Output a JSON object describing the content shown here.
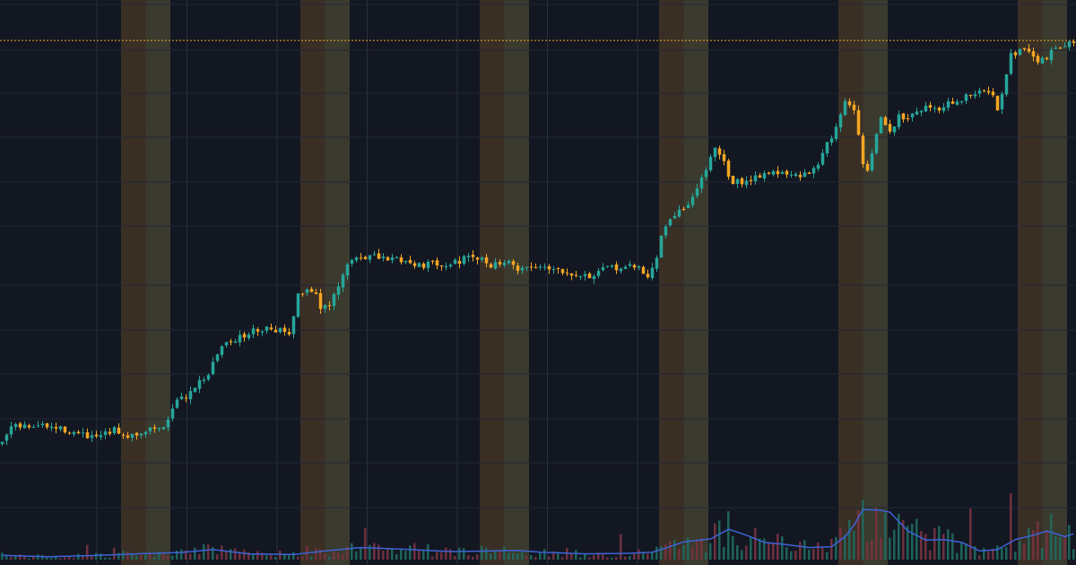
{
  "colors": {
    "background": "#131722",
    "grid": "#222735",
    "up": "#26a69a",
    "down": "#f5a623",
    "session_a": "#3a2f25",
    "session_b": "#3a3b2e",
    "price_line": "#f5a623",
    "volume_ma": "#3d63d6",
    "volume_up": "#1f6b5e",
    "volume_down": "#7a3340"
  },
  "chart_data": {
    "type": "candlestick",
    "title": "",
    "xlabel": "",
    "ylabel": "",
    "grid": true,
    "price_line_level": 95.3,
    "ylim": [
      0,
      100
    ],
    "sessions": [
      {
        "start": 27,
        "end": 38
      },
      {
        "start": 67,
        "end": 78
      },
      {
        "start": 107,
        "end": 118
      },
      {
        "start": 147,
        "end": 158
      },
      {
        "start": 187,
        "end": 198
      },
      {
        "start": 227,
        "end": 238
      }
    ],
    "close_path": [
      [
        0,
        21.0
      ],
      [
        2,
        24.0
      ],
      [
        8,
        24.4
      ],
      [
        14,
        23.6
      ],
      [
        20,
        22.0
      ],
      [
        23,
        22.7
      ],
      [
        25,
        23.5
      ],
      [
        28,
        22.6
      ],
      [
        31,
        23.2
      ],
      [
        34,
        24.0
      ],
      [
        36,
        23.8
      ],
      [
        38,
        28.0
      ],
      [
        41,
        29.8
      ],
      [
        43,
        31.7
      ],
      [
        46,
        34.0
      ],
      [
        48,
        37.5
      ],
      [
        50,
        40.0
      ],
      [
        53,
        40.5
      ],
      [
        56,
        41.8
      ],
      [
        59,
        42.5
      ],
      [
        62,
        42.0
      ],
      [
        64,
        41.6
      ],
      [
        66,
        48.3
      ],
      [
        68,
        49.5
      ],
      [
        70,
        49.0
      ],
      [
        71,
        45.8
      ],
      [
        73,
        46.3
      ],
      [
        75,
        49.8
      ],
      [
        77,
        54.0
      ],
      [
        79,
        55.4
      ],
      [
        82,
        55.6
      ],
      [
        85,
        55.0
      ],
      [
        88,
        55.2
      ],
      [
        91,
        54.4
      ],
      [
        94,
        54.0
      ],
      [
        97,
        54.3
      ],
      [
        100,
        54.2
      ],
      [
        103,
        55.0
      ],
      [
        106,
        55.2
      ],
      [
        109,
        54.0
      ],
      [
        112,
        54.6
      ],
      [
        115,
        53.4
      ],
      [
        118,
        53.5
      ],
      [
        121,
        53.8
      ],
      [
        124,
        53.2
      ],
      [
        127,
        52.6
      ],
      [
        130,
        52.0
      ],
      [
        132,
        52.0
      ],
      [
        135,
        53.4
      ],
      [
        139,
        53.6
      ],
      [
        142,
        53.4
      ],
      [
        144,
        52.0
      ],
      [
        146,
        55.0
      ],
      [
        147,
        59.6
      ],
      [
        149,
        62.0
      ],
      [
        151,
        64.3
      ],
      [
        153,
        65.0
      ],
      [
        155,
        68.0
      ],
      [
        157,
        72.0
      ],
      [
        159,
        75.0
      ],
      [
        161,
        72.6
      ],
      [
        163,
        69.0
      ],
      [
        166,
        69.6
      ],
      [
        169,
        70.6
      ],
      [
        172,
        71.2
      ],
      [
        175,
        70.5
      ],
      [
        178,
        70.2
      ],
      [
        180,
        71.0
      ],
      [
        182,
        73.0
      ],
      [
        184,
        76.0
      ],
      [
        186,
        79.5
      ],
      [
        188,
        84.0
      ],
      [
        190,
        82.8
      ],
      [
        191,
        78.5
      ],
      [
        192,
        72.0
      ],
      [
        193,
        71.5
      ],
      [
        194,
        74.5
      ],
      [
        196,
        81.0
      ],
      [
        198,
        78.5
      ],
      [
        200,
        81.2
      ],
      [
        202,
        81.5
      ],
      [
        204,
        82.5
      ],
      [
        206,
        83.0
      ],
      [
        209,
        83.0
      ],
      [
        211,
        83.6
      ],
      [
        214,
        84.4
      ],
      [
        217,
        85.6
      ],
      [
        219,
        86.0
      ],
      [
        221,
        85.0
      ],
      [
        222,
        83.0
      ],
      [
        223,
        86.0
      ],
      [
        225,
        93.0
      ],
      [
        228,
        93.5
      ],
      [
        231,
        91.5
      ],
      [
        233,
        92.0
      ],
      [
        235,
        94.5
      ],
      [
        237,
        94.3
      ],
      [
        239,
        95.0
      ]
    ],
    "volume_path": [
      [
        0,
        1.5
      ],
      [
        10,
        1.0
      ],
      [
        20,
        1.4
      ],
      [
        30,
        2.0
      ],
      [
        40,
        2.5
      ],
      [
        47,
        3.5
      ],
      [
        55,
        2.0
      ],
      [
        65,
        1.8
      ],
      [
        72,
        3.0
      ],
      [
        80,
        4.2
      ],
      [
        90,
        3.6
      ],
      [
        100,
        2.8
      ],
      [
        108,
        3.0
      ],
      [
        115,
        3.2
      ],
      [
        120,
        2.6
      ],
      [
        130,
        2.0
      ],
      [
        140,
        2.2
      ],
      [
        145,
        2.6
      ],
      [
        148,
        4.0
      ],
      [
        152,
        6.2
      ],
      [
        158,
        7.2
      ],
      [
        162,
        10.6
      ],
      [
        166,
        8.5
      ],
      [
        170,
        6.0
      ],
      [
        175,
        5.2
      ],
      [
        180,
        4.2
      ],
      [
        185,
        4.5
      ],
      [
        188,
        8.0
      ],
      [
        190,
        12.0
      ],
      [
        192,
        17.5
      ],
      [
        196,
        17.2
      ],
      [
        198,
        16.5
      ],
      [
        202,
        10.0
      ],
      [
        206,
        6.8
      ],
      [
        210,
        7.0
      ],
      [
        214,
        6.0
      ],
      [
        218,
        3.0
      ],
      [
        222,
        3.5
      ],
      [
        226,
        7.0
      ],
      [
        230,
        8.5
      ],
      [
        233,
        10.0
      ],
      [
        237,
        8.0
      ],
      [
        239,
        9.0
      ]
    ]
  }
}
